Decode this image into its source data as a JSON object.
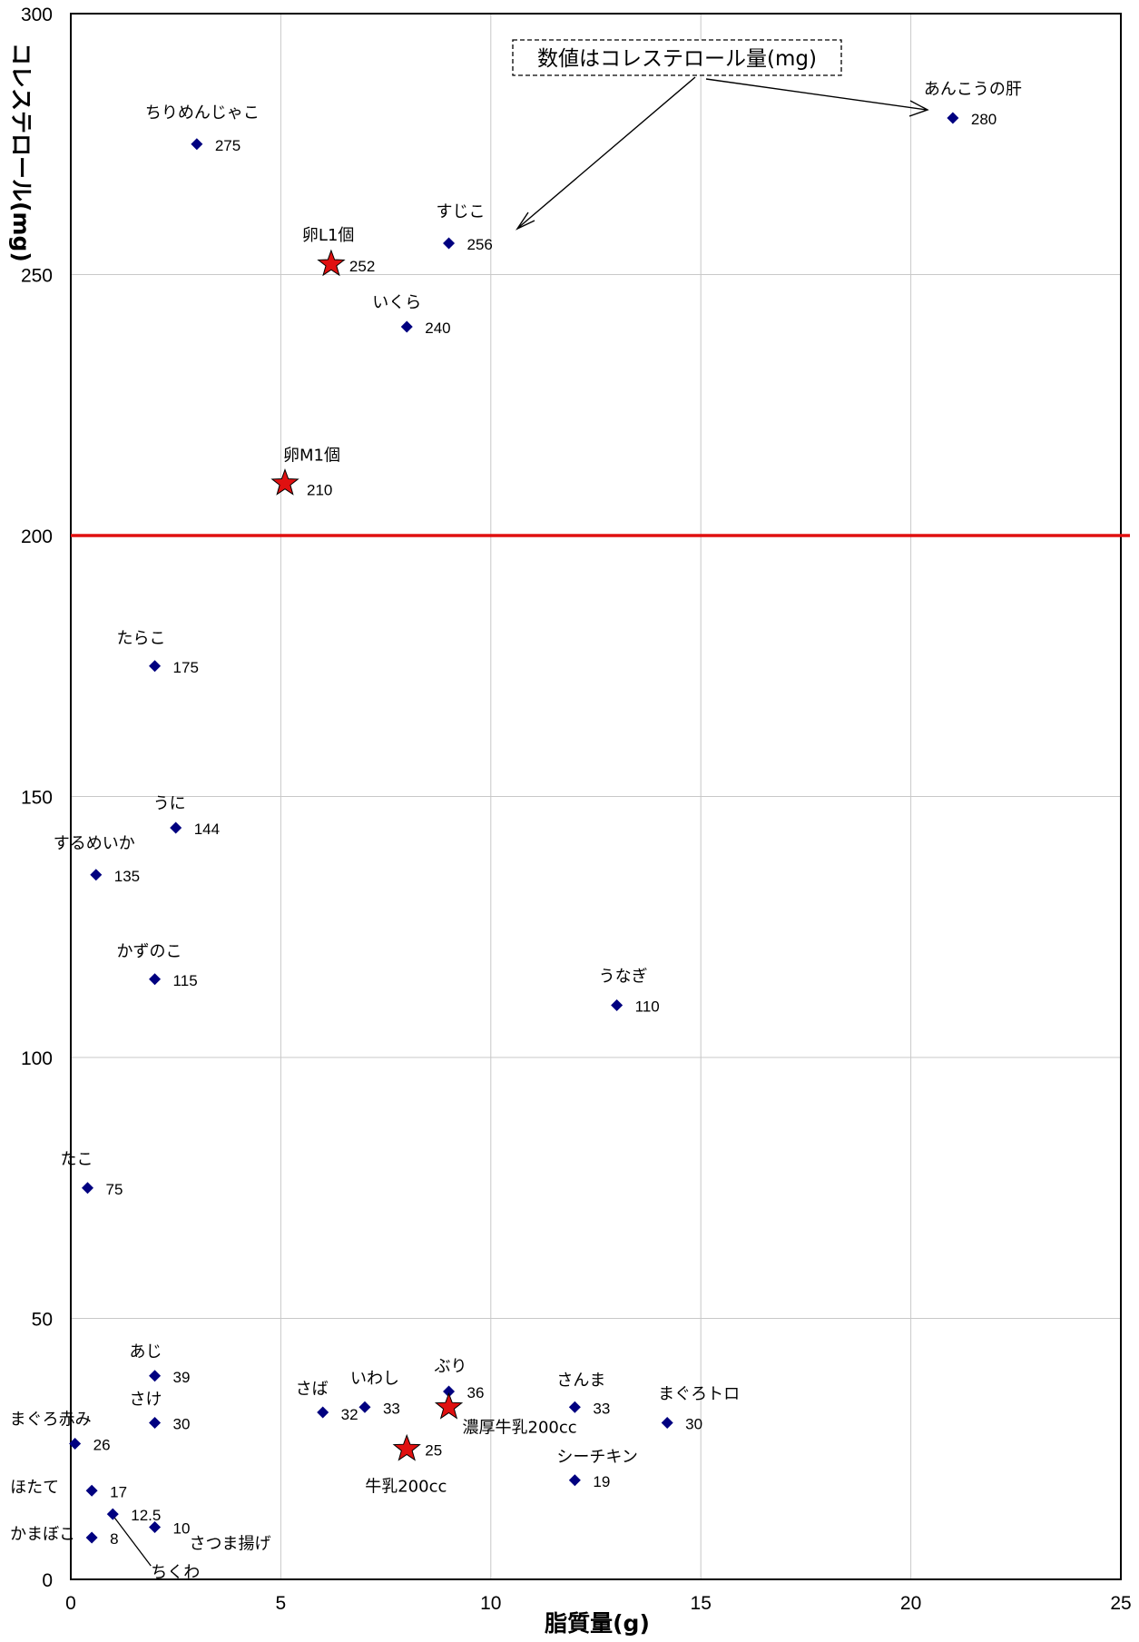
{
  "chart_data": {
    "type": "scatter",
    "xlabel": "脂質量(g)",
    "ylabel": "コレステロール(mg)",
    "xlim": [
      0,
      25
    ],
    "ylim": [
      0,
      300
    ],
    "xticks": [
      "0",
      "5",
      "10",
      "15",
      "20",
      "25"
    ],
    "yticks": [
      "0",
      "50",
      "100",
      "150",
      "200",
      "250",
      "300"
    ],
    "grid": true,
    "threshold_line": {
      "y": 200,
      "color": "#e01010"
    },
    "annotation": "数値はコレステロール量(mg)",
    "marker_colors": {
      "diamond": "#000080",
      "star": "#e01010"
    },
    "points": [
      {
        "name": "あんこうの肝",
        "x": 21,
        "y": 280,
        "value_label": "280",
        "marker": "diamond"
      },
      {
        "name": "ちりめんじゃこ",
        "x": 3,
        "y": 275,
        "value_label": "275",
        "marker": "diamond"
      },
      {
        "name": "すじこ",
        "x": 9,
        "y": 256,
        "value_label": "256",
        "marker": "diamond"
      },
      {
        "name": "卵L1個",
        "x": 6.2,
        "y": 252,
        "value_label": "252",
        "marker": "star"
      },
      {
        "name": "いくら",
        "x": 8,
        "y": 240,
        "value_label": "240",
        "marker": "diamond"
      },
      {
        "name": "卵M1個",
        "x": 5.1,
        "y": 210,
        "value_label": "210",
        "marker": "star"
      },
      {
        "name": "たらこ",
        "x": 2,
        "y": 175,
        "value_label": "175",
        "marker": "diamond"
      },
      {
        "name": "うに",
        "x": 2.5,
        "y": 144,
        "value_label": "144",
        "marker": "diamond"
      },
      {
        "name": "するめいか",
        "x": 0.6,
        "y": 135,
        "value_label": "135",
        "marker": "diamond"
      },
      {
        "name": "かずのこ",
        "x": 2,
        "y": 115,
        "value_label": "115",
        "marker": "diamond"
      },
      {
        "name": "うなぎ",
        "x": 13,
        "y": 110,
        "value_label": "110",
        "marker": "diamond"
      },
      {
        "name": "たこ",
        "x": 0.4,
        "y": 75,
        "value_label": "75",
        "marker": "diamond"
      },
      {
        "name": "あじ",
        "x": 2,
        "y": 39,
        "value_label": "39",
        "marker": "diamond"
      },
      {
        "name": "さけ",
        "x": 2,
        "y": 30,
        "value_label": "30",
        "marker": "diamond"
      },
      {
        "name": "まぐろ赤み",
        "x": 0.1,
        "y": 26,
        "value_label": "26",
        "marker": "diamond"
      },
      {
        "name": "ほたて",
        "x": 0.5,
        "y": 17,
        "value_label": "17",
        "marker": "diamond"
      },
      {
        "name": "ちくわ",
        "x": 1,
        "y": 12.5,
        "value_label": "12.5",
        "marker": "diamond"
      },
      {
        "name": "さつま揚げ",
        "x": 2,
        "y": 10,
        "value_label": "10",
        "marker": "diamond"
      },
      {
        "name": "かまぼこ",
        "x": 0.5,
        "y": 8,
        "value_label": "8",
        "marker": "diamond"
      },
      {
        "name": "さば",
        "x": 6,
        "y": 32,
        "value_label": "32",
        "marker": "diamond"
      },
      {
        "name": "いわし",
        "x": 7,
        "y": 33,
        "value_label": "33",
        "marker": "diamond"
      },
      {
        "name": "ぶり",
        "x": 9,
        "y": 36,
        "value_label": "36",
        "marker": "diamond"
      },
      {
        "name": "濃厚牛乳200cc",
        "x": 9,
        "y": 33,
        "value_label": "",
        "marker": "star"
      },
      {
        "name": "牛乳200cc",
        "x": 8,
        "y": 25,
        "value_label": "25",
        "marker": "star"
      },
      {
        "name": "さんま",
        "x": 12,
        "y": 33,
        "value_label": "33",
        "marker": "diamond"
      },
      {
        "name": "シーチキン",
        "x": 12,
        "y": 19,
        "value_label": "19",
        "marker": "diamond"
      },
      {
        "name": "まぐろトロ",
        "x": 14.2,
        "y": 30,
        "value_label": "30",
        "marker": "diamond"
      }
    ]
  }
}
